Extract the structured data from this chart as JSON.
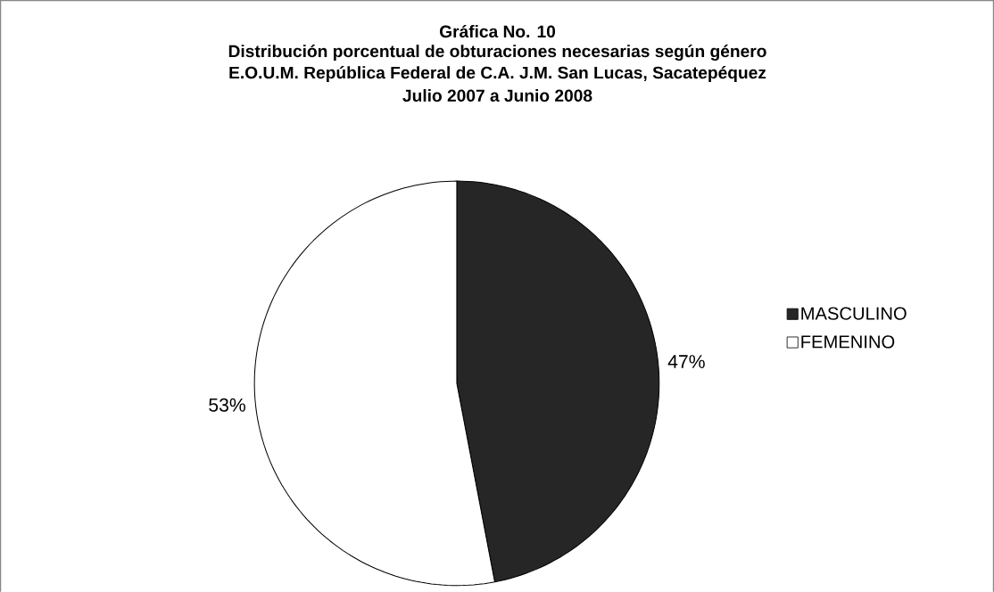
{
  "chart_data": {
    "type": "pie",
    "title": "Gráfica No. 10",
    "subtitle": "Distribución porcentual de obturaciones necesarias según género",
    "annotations": [
      "E.O.U.M. República Federal de C.A. J.M. San Lucas, Sacatepéquez",
      "Julio 2007 a Junio 2008"
    ],
    "categories": [
      "MASCULINO",
      "FEMENINO"
    ],
    "values": [
      47,
      53
    ],
    "colors": [
      "#262626",
      "#ffffff"
    ],
    "value_labels": [
      "47%",
      "53%"
    ],
    "legend": "right"
  }
}
